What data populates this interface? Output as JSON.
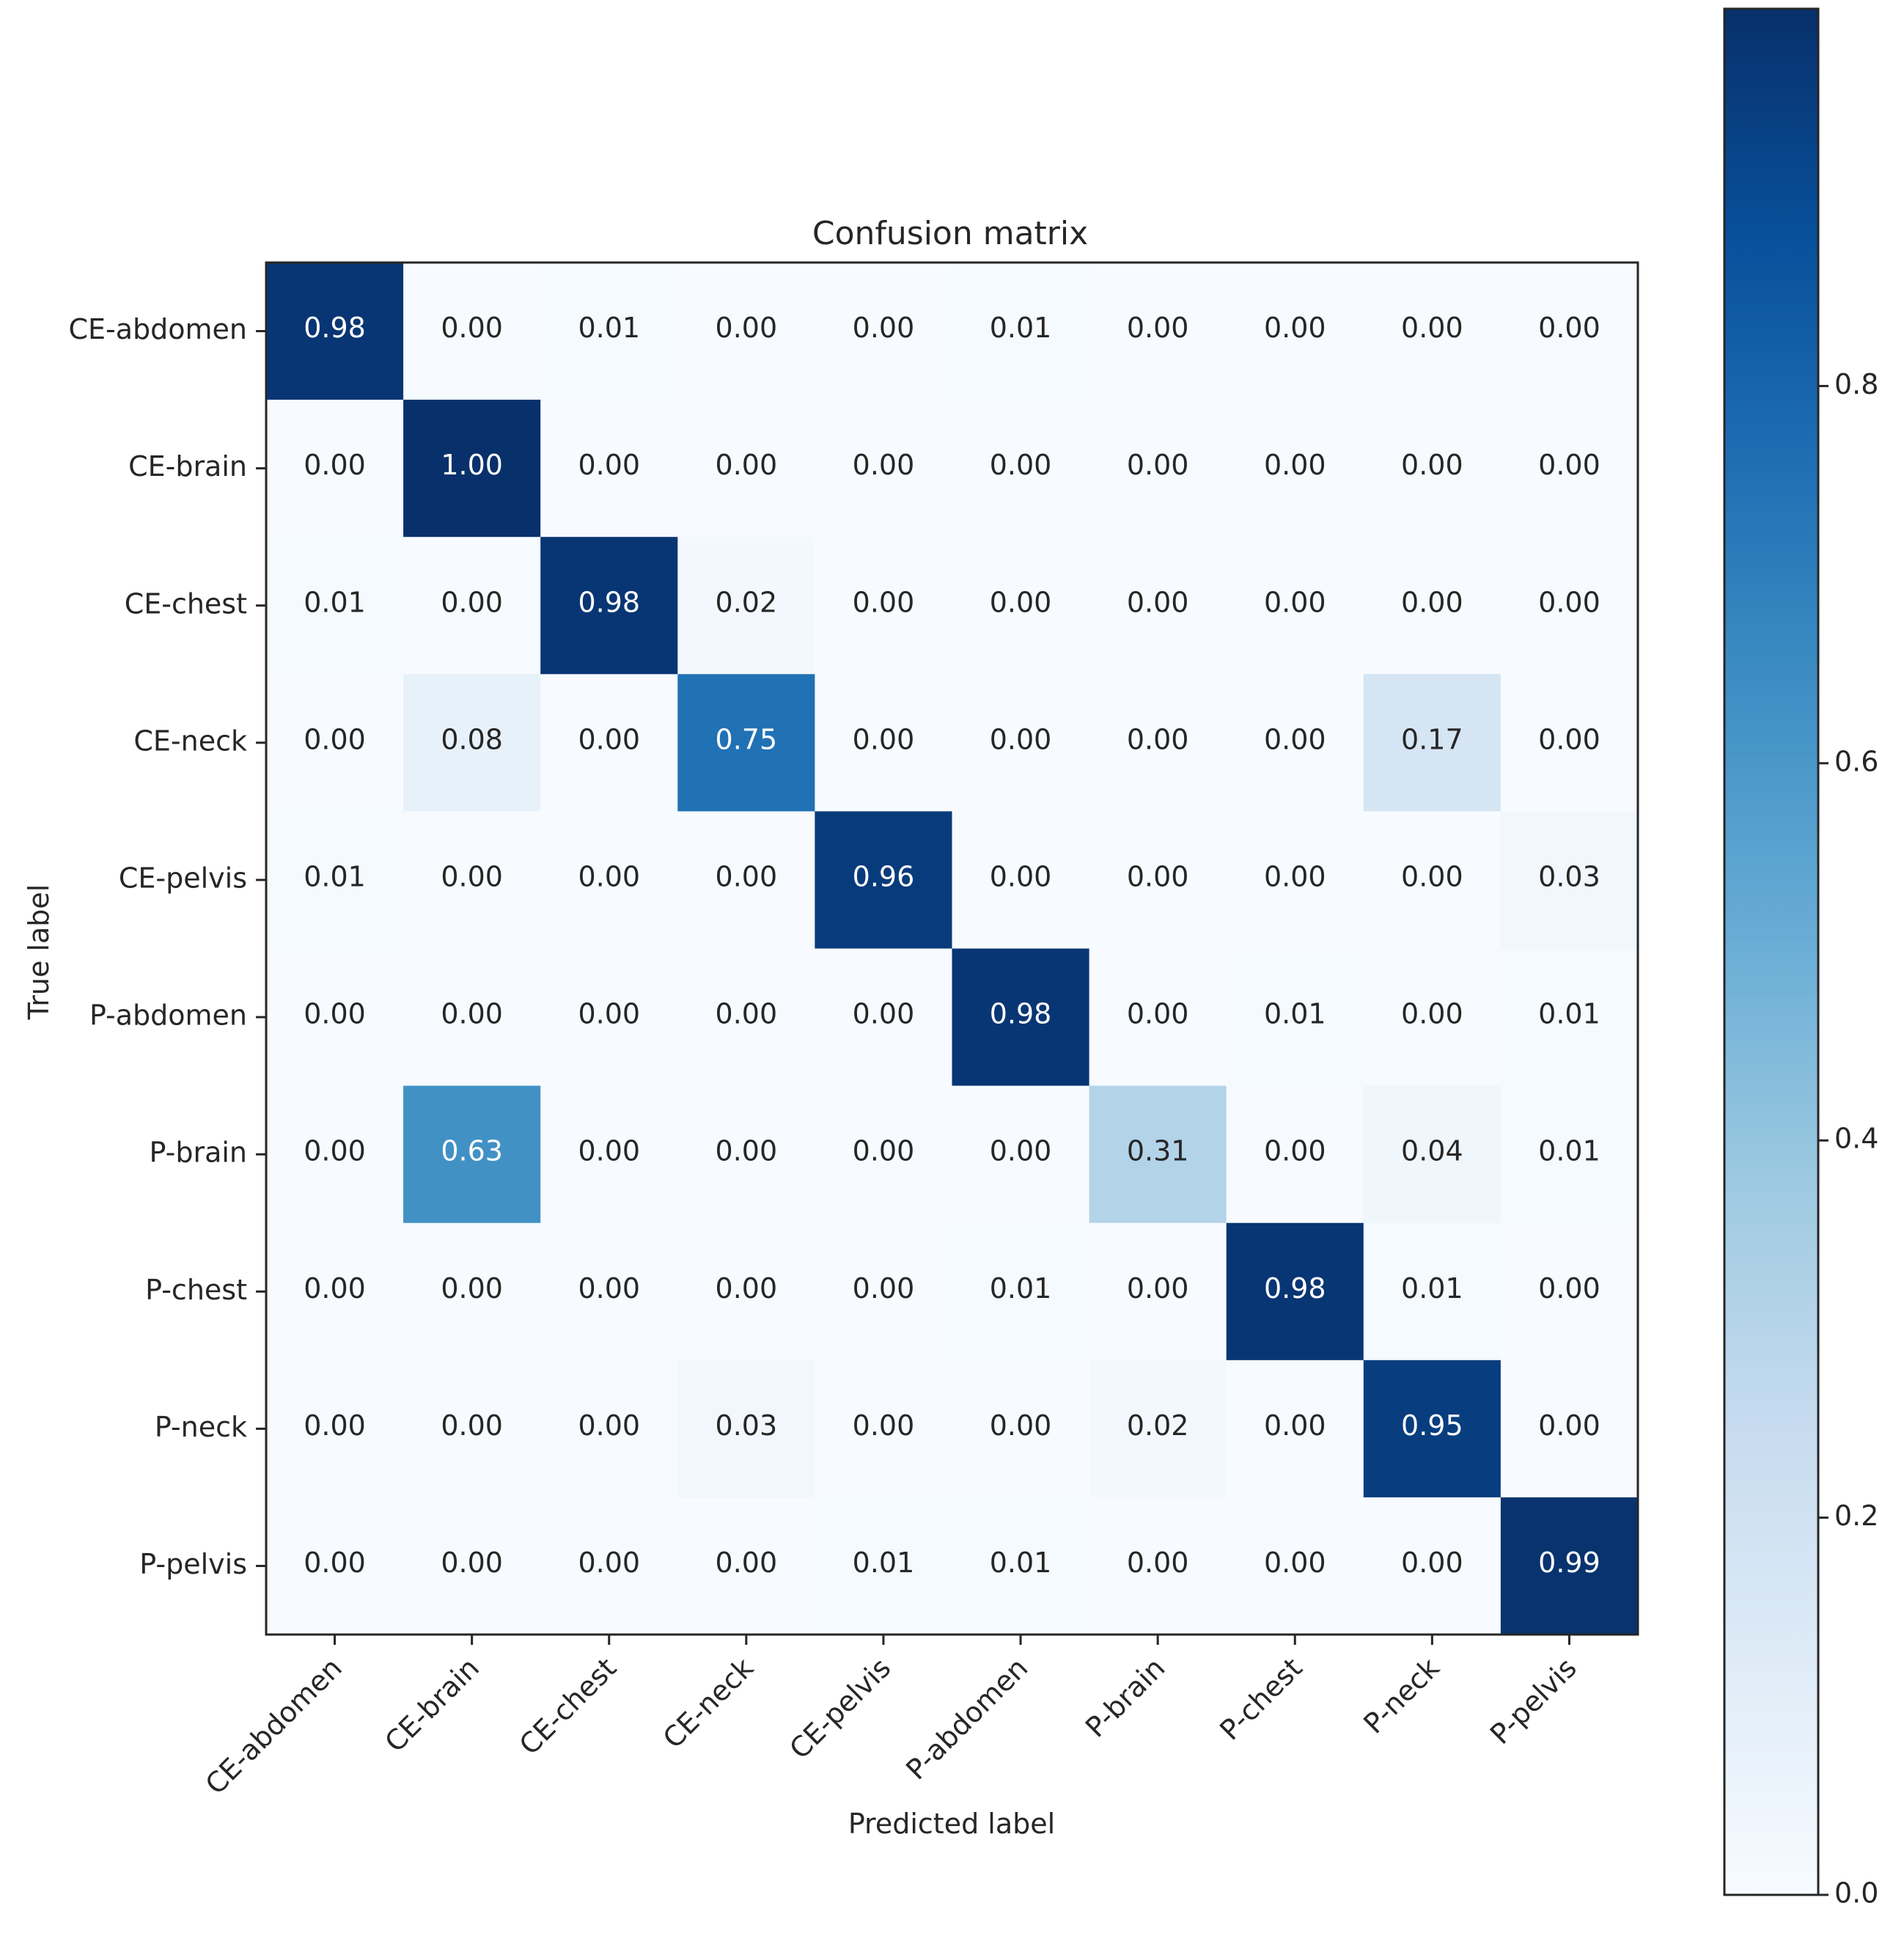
{
  "chart_data": {
    "type": "heatmap",
    "title": "Confusion matrix",
    "xlabel": "Predicted label",
    "ylabel": "True label",
    "categories_x": [
      "CE-abdomen",
      "CE-brain",
      "CE-chest",
      "CE-neck",
      "CE-pelvis",
      "P-abdomen",
      "P-brain",
      "P-chest",
      "P-neck",
      "P-pelvis"
    ],
    "categories_y": [
      "CE-abdomen",
      "CE-brain",
      "CE-chest",
      "CE-neck",
      "CE-pelvis",
      "P-abdomen",
      "P-brain",
      "P-chest",
      "P-neck",
      "P-pelvis"
    ],
    "values": [
      [
        0.98,
        0.0,
        0.01,
        0.0,
        0.0,
        0.01,
        0.0,
        0.0,
        0.0,
        0.0
      ],
      [
        0.0,
        1.0,
        0.0,
        0.0,
        0.0,
        0.0,
        0.0,
        0.0,
        0.0,
        0.0
      ],
      [
        0.01,
        0.0,
        0.98,
        0.02,
        0.0,
        0.0,
        0.0,
        0.0,
        0.0,
        0.0
      ],
      [
        0.0,
        0.08,
        0.0,
        0.75,
        0.0,
        0.0,
        0.0,
        0.0,
        0.17,
        0.0
      ],
      [
        0.01,
        0.0,
        0.0,
        0.0,
        0.96,
        0.0,
        0.0,
        0.0,
        0.0,
        0.03
      ],
      [
        0.0,
        0.0,
        0.0,
        0.0,
        0.0,
        0.98,
        0.0,
        0.01,
        0.0,
        0.01
      ],
      [
        0.0,
        0.63,
        0.0,
        0.0,
        0.0,
        0.0,
        0.31,
        0.0,
        0.04,
        0.01
      ],
      [
        0.0,
        0.0,
        0.0,
        0.0,
        0.0,
        0.01,
        0.0,
        0.98,
        0.01,
        0.0
      ],
      [
        0.0,
        0.0,
        0.0,
        0.03,
        0.0,
        0.0,
        0.02,
        0.0,
        0.95,
        0.0
      ],
      [
        0.0,
        0.0,
        0.0,
        0.0,
        0.01,
        0.01,
        0.0,
        0.0,
        0.0,
        0.99
      ]
    ],
    "value_format": "0.00",
    "colormap": "Blues",
    "colorbar": {
      "range": [
        0,
        1
      ],
      "ticks": [
        0.0,
        0.2,
        0.4,
        0.6,
        0.8
      ],
      "tick_labels": [
        "0.0",
        "0.2",
        "0.4",
        "0.6",
        "0.8"
      ]
    },
    "text_color_dark": "#262626",
    "text_color_light": "#ffffff"
  }
}
